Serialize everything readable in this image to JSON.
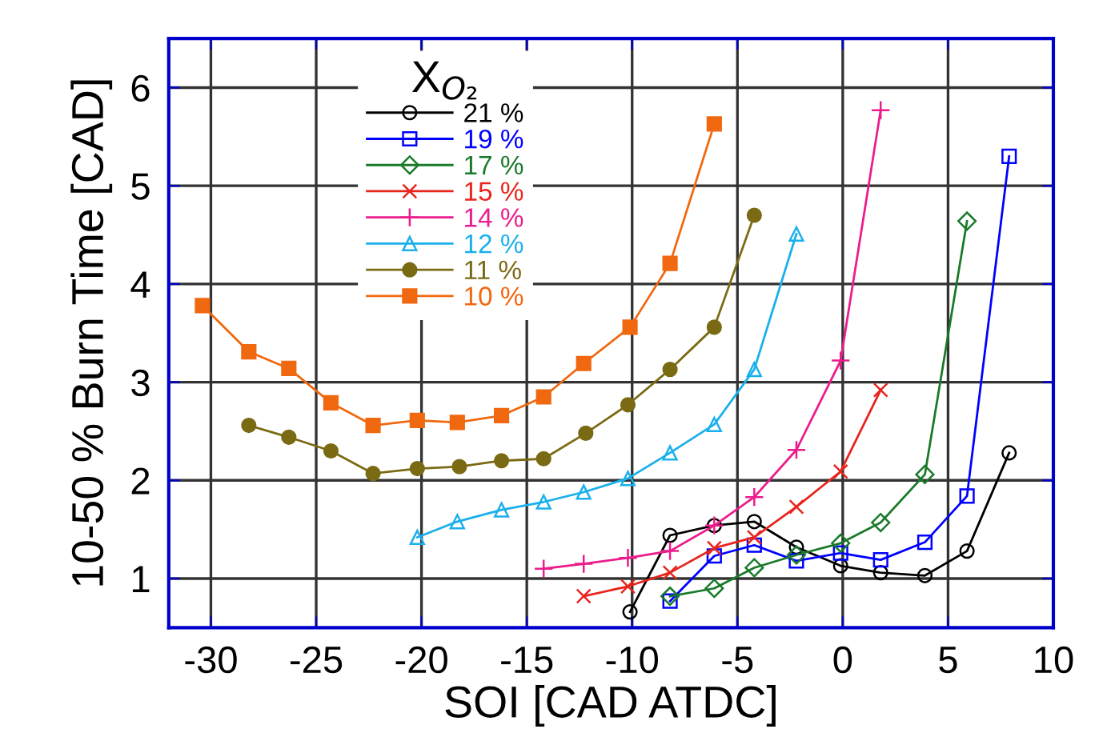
{
  "chart_data": {
    "type": "line",
    "xlabel": "SOI [CAD ATDC]",
    "ylabel": "10-50 % Burn Time [CAD]",
    "legend_title": "X$_{O₂}$",
    "xlim": [
      -32,
      10
    ],
    "xticks": [
      -30,
      -25,
      -20,
      -15,
      -10,
      -5,
      0,
      5,
      10
    ],
    "ylim": [
      0.5,
      6.5
    ],
    "yticks": [
      1,
      2,
      3,
      4,
      5,
      6
    ],
    "grid": true,
    "legend": "top",
    "series": [
      {
        "name": "21 %",
        "color": "#000000",
        "marker": "circle",
        "x": [
          -10.1,
          -8.2,
          -6.1,
          -4.2,
          -2.2,
          -0.1,
          1.8,
          3.9,
          5.9,
          7.9
        ],
        "values": [
          0.66,
          1.44,
          1.54,
          1.58,
          1.32,
          1.13,
          1.06,
          1.03,
          1.28,
          2.28
        ]
      },
      {
        "name": "19 %",
        "color": "#0000ff",
        "marker": "square",
        "x": [
          -8.2,
          -6.1,
          -4.2,
          -2.2,
          -0.1,
          1.8,
          3.9,
          5.9,
          7.9
        ],
        "values": [
          0.77,
          1.23,
          1.34,
          1.18,
          1.26,
          1.19,
          1.37,
          1.84,
          5.3
        ]
      },
      {
        "name": "17 %",
        "color": "#1a7a2a",
        "marker": "diamond",
        "x": [
          -8.2,
          -6.1,
          -4.2,
          -2.2,
          -0.1,
          1.8,
          3.9,
          5.9
        ],
        "values": [
          0.82,
          0.9,
          1.11,
          1.24,
          1.36,
          1.57,
          2.06,
          4.64
        ]
      },
      {
        "name": "15 %",
        "color": "#e8241c",
        "marker": "cross",
        "x": [
          -12.3,
          -10.2,
          -8.2,
          -6.1,
          -4.2,
          -2.2,
          -0.1,
          1.8
        ],
        "values": [
          0.82,
          0.92,
          1.06,
          1.31,
          1.42,
          1.73,
          2.09,
          2.92
        ]
      },
      {
        "name": "14 %",
        "color": "#ec1c8c",
        "marker": "plus",
        "x": [
          -14.2,
          -12.3,
          -10.2,
          -8.2,
          -6.1,
          -4.2,
          -2.2,
          -0.1,
          1.8
        ],
        "values": [
          1.1,
          1.15,
          1.21,
          1.28,
          1.54,
          1.83,
          2.31,
          3.22,
          5.77
        ]
      },
      {
        "name": "12 %",
        "color": "#1ab0ec",
        "marker": "triangle",
        "x": [
          -20.2,
          -18.3,
          -16.2,
          -14.2,
          -12.3,
          -10.2,
          -8.2,
          -6.1,
          -4.2,
          -2.2
        ],
        "values": [
          1.42,
          1.58,
          1.7,
          1.78,
          1.88,
          2.02,
          2.28,
          2.57,
          3.13,
          4.51
        ]
      },
      {
        "name": "11 %",
        "color": "#7b6a14",
        "marker": "circle",
        "x": [
          -28.2,
          -26.3,
          -24.3,
          -22.3,
          -20.2,
          -18.2,
          -16.2,
          -14.2,
          -12.2,
          -10.2,
          -8.2,
          -6.1,
          -4.2
        ],
        "values": [
          2.56,
          2.44,
          2.3,
          2.07,
          2.12,
          2.14,
          2.2,
          2.22,
          2.48,
          2.77,
          3.13,
          3.56,
          4.7
        ]
      },
      {
        "name": "10 %",
        "color": "#f0680f",
        "marker": "square",
        "x": [
          -30.4,
          -28.2,
          -26.3,
          -24.3,
          -22.3,
          -20.2,
          -18.3,
          -16.2,
          -14.2,
          -12.3,
          -10.1,
          -8.2,
          -6.1
        ],
        "values": [
          3.78,
          3.31,
          3.14,
          2.79,
          2.56,
          2.61,
          2.59,
          2.66,
          2.85,
          3.19,
          3.56,
          4.21,
          5.63
        ]
      }
    ]
  }
}
